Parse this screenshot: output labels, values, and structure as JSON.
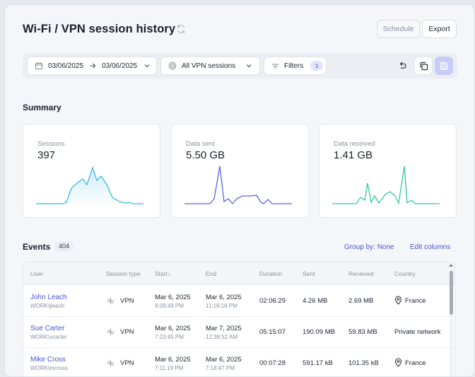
{
  "header": {
    "title": "Wi-Fi / VPN session history",
    "schedule_label": "Schedule",
    "export_label": "Export"
  },
  "toolbar": {
    "date_from": "03/06/2025",
    "date_to": "03/06/2025",
    "session_type": "All VPN sessions",
    "filters_label": "Filters",
    "filters_count": "1"
  },
  "summary": {
    "title": "Summary",
    "cards": [
      {
        "label": "Sessions",
        "value": "397",
        "color": "#3ab7e6"
      },
      {
        "label": "Data sent",
        "value": "5.50 GB",
        "color": "#5a63d8"
      },
      {
        "label": "Data received",
        "value": "1.41 GB",
        "color": "#2fc7a2"
      }
    ]
  },
  "events": {
    "title": "Events",
    "count": "404",
    "group_by": "Group by: None",
    "edit_columns": "Edit columns",
    "columns": [
      "User",
      "Session type",
      "Start",
      "End",
      "Duration",
      "Sent",
      "Received",
      "Country"
    ],
    "sort_indicator": "↓",
    "rows": [
      {
        "name": "John Leach",
        "account": "WORK\\jleach",
        "type": "VPN",
        "start_date": "Mar 6, 2025",
        "start_time": "9:09:49 PM",
        "end_date": "Mar 6, 2025",
        "end_time": "11:16:18 PM",
        "duration": "02:06:29",
        "sent": "4.26 MB",
        "received": "2.69 MB",
        "country": "France"
      },
      {
        "name": "Sue Carter",
        "account": "WORK\\scarter",
        "type": "VPN",
        "start_date": "Mar 6, 2025",
        "start_time": "7:23:45 PM",
        "end_date": "Mar 7, 2025",
        "end_time": "12:38:52 AM",
        "duration": "05:15:07",
        "sent": "190.09 MB",
        "received": "59.83 MB",
        "country": "Private network"
      },
      {
        "name": "Mike Cross",
        "account": "WORK\\mcross",
        "type": "VPN",
        "start_date": "Mar 6, 2025",
        "start_time": "7:11:19 PM",
        "end_date": "Mar 6, 2025",
        "end_time": "7:18:47 PM",
        "duration": "00:07:28",
        "sent": "591.17 kB",
        "received": "101.35 kB",
        "country": "France"
      }
    ]
  }
}
